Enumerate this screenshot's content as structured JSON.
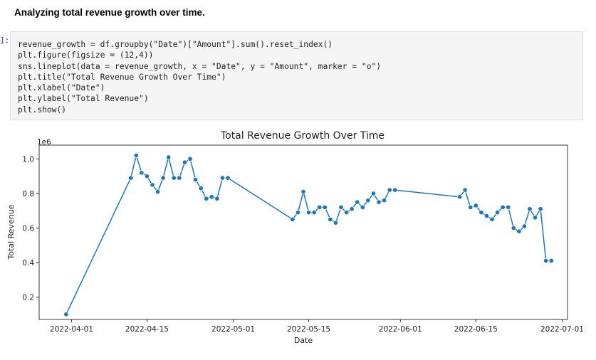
{
  "markdown": {
    "heading": "Analyzing total revenue growth over time."
  },
  "cell": {
    "prompt": "]:",
    "code_lines": [
      "revenue_growth = df.groupby(\"Date\")[\"Amount\"].sum().reset_index()",
      "plt.figure(figsize = (12,4))",
      "sns.lineplot(data = revenue_growth, x = \"Date\", y = \"Amount\", marker = \"o\")",
      "plt.title(\"Total Revenue Growth Over Time\")",
      "plt.xlabel(\"Date\")",
      "plt.ylabel(\"Total Revenue\")",
      "plt.show()"
    ]
  },
  "chart_data": {
    "type": "line",
    "title": "Total Revenue Growth Over Time",
    "xlabel": "Date",
    "ylabel": "Total Revenue",
    "y_offset_label": "1e6",
    "xlim": [
      "2022-03-26",
      "2022-07-02"
    ],
    "ylim": [
      0.07,
      1.08
    ],
    "x_ticks": [
      "2022-04-01",
      "2022-04-15",
      "2022-05-01",
      "2022-05-15",
      "2022-06-01",
      "2022-06-15",
      "2022-07-01"
    ],
    "y_ticks": [
      0.2,
      0.4,
      0.6,
      0.8,
      1.0
    ],
    "y_tick_labels": [
      "0.2",
      "0.4",
      "0.6",
      "0.8",
      "1.0"
    ],
    "color": "#1f77b4",
    "marker": "o",
    "grid": false,
    "series": [
      {
        "x": [
          "2022-03-31",
          "2022-04-12",
          "2022-04-13",
          "2022-04-14",
          "2022-04-15",
          "2022-04-16",
          "2022-04-17",
          "2022-04-18",
          "2022-04-19",
          "2022-04-20",
          "2022-04-21",
          "2022-04-22",
          "2022-04-23",
          "2022-04-24",
          "2022-04-25",
          "2022-04-26",
          "2022-04-27",
          "2022-04-28",
          "2022-04-29",
          "2022-04-30",
          "2022-05-12",
          "2022-05-13",
          "2022-05-14",
          "2022-05-15",
          "2022-05-16",
          "2022-05-17",
          "2022-05-18",
          "2022-05-19",
          "2022-05-20",
          "2022-05-21",
          "2022-05-22",
          "2022-05-23",
          "2022-05-24",
          "2022-05-25",
          "2022-05-26",
          "2022-05-27",
          "2022-05-28",
          "2022-05-29",
          "2022-05-30",
          "2022-05-31",
          "2022-06-12",
          "2022-06-13",
          "2022-06-14",
          "2022-06-15",
          "2022-06-16",
          "2022-06-17",
          "2022-06-18",
          "2022-06-19",
          "2022-06-20",
          "2022-06-21",
          "2022-06-22",
          "2022-06-23",
          "2022-06-24",
          "2022-06-25",
          "2022-06-26",
          "2022-06-27",
          "2022-06-28",
          "2022-06-29"
        ],
        "y": [
          0.1,
          0.89,
          1.02,
          0.92,
          0.9,
          0.85,
          0.81,
          0.89,
          1.01,
          0.89,
          0.89,
          0.98,
          1.0,
          0.88,
          0.83,
          0.77,
          0.78,
          0.77,
          0.89,
          0.89,
          0.65,
          0.69,
          0.81,
          0.69,
          0.69,
          0.72,
          0.72,
          0.65,
          0.63,
          0.72,
          0.69,
          0.71,
          0.75,
          0.72,
          0.76,
          0.8,
          0.75,
          0.76,
          0.82,
          0.82,
          0.78,
          0.82,
          0.72,
          0.73,
          0.69,
          0.67,
          0.65,
          0.69,
          0.72,
          0.72,
          0.6,
          0.58,
          0.61,
          0.71,
          0.66,
          0.71,
          0.41,
          0.41
        ]
      }
    ]
  }
}
